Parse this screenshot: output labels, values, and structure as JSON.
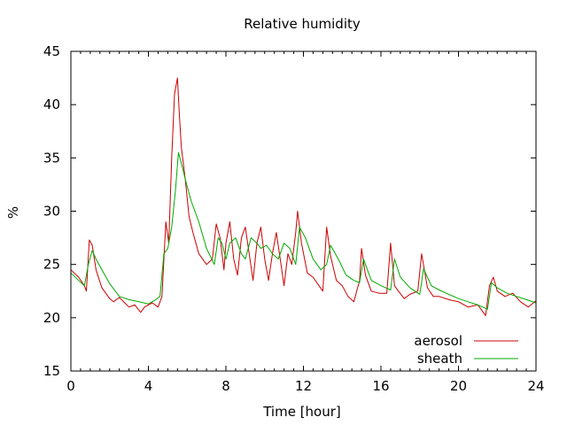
{
  "chart_data": {
    "type": "line",
    "title": "Relative humidity",
    "xlabel": "Time [hour]",
    "ylabel": "%",
    "xlim": [
      0,
      24
    ],
    "ylim": [
      15,
      45
    ],
    "xticks": [
      0,
      4,
      8,
      12,
      16,
      20,
      24
    ],
    "yticks": [
      15,
      20,
      25,
      30,
      35,
      40,
      45
    ],
    "grid": false,
    "legend_position": "bottom-right",
    "series": [
      {
        "name": "aerosol",
        "color": "#cc0000",
        "x": [
          0,
          0.4,
          0.7,
          0.8,
          0.95,
          1.1,
          1.3,
          1.6,
          2.0,
          2.2,
          2.5,
          3.0,
          3.3,
          3.6,
          3.8,
          4.2,
          4.5,
          4.7,
          4.9,
          5.05,
          5.2,
          5.35,
          5.5,
          5.6,
          5.7,
          5.9,
          6.1,
          6.3,
          6.6,
          7.0,
          7.3,
          7.5,
          7.7,
          7.9,
          8.0,
          8.2,
          8.4,
          8.6,
          8.8,
          9.0,
          9.2,
          9.4,
          9.6,
          9.8,
          10.0,
          10.2,
          10.4,
          10.6,
          10.8,
          11.0,
          11.2,
          11.4,
          11.6,
          11.7,
          11.9,
          12.2,
          12.5,
          12.8,
          13.0,
          13.2,
          13.4,
          13.7,
          14.0,
          14.3,
          14.6,
          14.9,
          15.0,
          15.2,
          15.5,
          15.9,
          16.3,
          16.5,
          16.7,
          16.9,
          17.2,
          17.5,
          17.9,
          18.1,
          18.4,
          18.7,
          19.0,
          19.5,
          20.0,
          20.5,
          21.0,
          21.4,
          21.6,
          21.8,
          22.0,
          22.4,
          22.8,
          23.2,
          23.6,
          24.0
        ],
        "y": [
          24.5,
          23.8,
          23.0,
          22.5,
          27.3,
          26.8,
          24.5,
          22.8,
          21.8,
          21.5,
          21.9,
          21.0,
          21.2,
          20.5,
          21.0,
          21.4,
          21.0,
          22.0,
          29.0,
          27.0,
          35.0,
          41.0,
          42.5,
          39.0,
          36.0,
          33.0,
          29.5,
          28.0,
          26.0,
          25.0,
          25.5,
          28.8,
          27.5,
          24.5,
          27.0,
          29.0,
          25.5,
          24.0,
          27.5,
          28.5,
          26.0,
          23.5,
          27.0,
          28.5,
          25.5,
          23.5,
          26.0,
          28.0,
          25.5,
          23.0,
          26.0,
          25.0,
          28.0,
          30.0,
          27.0,
          24.2,
          23.8,
          23.0,
          22.5,
          28.5,
          25.8,
          23.5,
          23.0,
          22.0,
          21.5,
          23.5,
          26.5,
          24.0,
          22.5,
          22.3,
          22.3,
          27.0,
          23.0,
          22.5,
          21.8,
          22.2,
          22.5,
          26.0,
          22.8,
          22.0,
          22.0,
          21.7,
          21.5,
          21.0,
          21.2,
          20.2,
          23.0,
          23.8,
          22.5,
          22.0,
          22.3,
          21.5,
          21.0,
          21.6
        ]
      },
      {
        "name": "sheath",
        "color": "#00aa00",
        "x": [
          0,
          0.4,
          0.7,
          0.9,
          1.1,
          1.3,
          1.6,
          2.0,
          2.5,
          3.0,
          3.5,
          4.0,
          4.3,
          4.6,
          4.8,
          5.0,
          5.2,
          5.4,
          5.55,
          5.7,
          5.9,
          6.2,
          6.6,
          7.0,
          7.4,
          7.6,
          7.8,
          8.0,
          8.2,
          8.5,
          8.8,
          9.0,
          9.3,
          9.6,
          9.8,
          10.1,
          10.4,
          10.7,
          11.0,
          11.3,
          11.6,
          11.8,
          12.1,
          12.5,
          12.9,
          13.2,
          13.4,
          13.8,
          14.2,
          14.6,
          14.9,
          15.1,
          15.5,
          16.0,
          16.5,
          16.7,
          17.0,
          17.5,
          18.0,
          18.2,
          18.6,
          19.0,
          19.5,
          20.0,
          20.5,
          21.0,
          21.5,
          21.7,
          22.0,
          22.5,
          23.0,
          23.5,
          24.0
        ],
        "y": [
          24.2,
          23.5,
          23.0,
          25.0,
          26.3,
          25.5,
          24.5,
          23.2,
          22.0,
          21.7,
          21.5,
          21.3,
          21.6,
          22.0,
          26.0,
          26.5,
          28.5,
          32.0,
          35.5,
          34.5,
          33.0,
          31.0,
          29.0,
          26.5,
          25.0,
          27.5,
          27.0,
          25.5,
          27.0,
          27.5,
          26.0,
          25.5,
          27.5,
          27.0,
          26.5,
          26.8,
          26.0,
          25.5,
          27.0,
          26.5,
          25.0,
          28.5,
          27.5,
          25.5,
          24.5,
          25.0,
          26.8,
          25.5,
          24.0,
          23.5,
          23.3,
          25.5,
          23.5,
          23.0,
          22.6,
          25.5,
          23.8,
          22.8,
          22.2,
          24.6,
          23.0,
          22.6,
          22.2,
          21.8,
          21.5,
          21.2,
          20.8,
          23.3,
          22.8,
          22.3,
          22.0,
          21.7,
          21.4
        ]
      }
    ]
  }
}
